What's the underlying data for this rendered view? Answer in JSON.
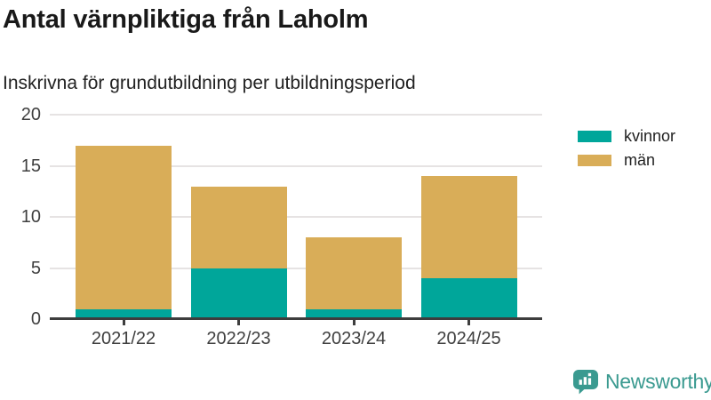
{
  "header": {
    "title": "Antal värnpliktiga från Laholm",
    "subtitle": "Inskrivna för grundutbildning per utbildningsperiod"
  },
  "chart_data": {
    "type": "bar",
    "stacked": true,
    "title": "Antal värnpliktiga från Laholm",
    "subtitle": "Inskrivna för grundutbildning per utbildningsperiod",
    "categories": [
      "2021/22",
      "2022/23",
      "2023/24",
      "2024/25"
    ],
    "series": [
      {
        "name": "kvinnor",
        "color": "#00a69a",
        "values": [
          1,
          5,
          1,
          4
        ]
      },
      {
        "name": "män",
        "color": "#d9ad58",
        "values": [
          16,
          8,
          7,
          10
        ]
      }
    ],
    "totals": [
      17,
      13,
      8,
      14
    ],
    "ylim": [
      0,
      20
    ],
    "yticks": [
      0,
      5,
      10,
      15,
      20
    ],
    "grid": true,
    "legend_position": "right",
    "colors": {
      "gridline": "#e6e3e3",
      "axis": "#3d3d3d",
      "tick_label": "#3f3f3f"
    }
  },
  "branding": {
    "logo_text": "Newsworthy",
    "logo_color": "#3a9a90",
    "logo_icon": "bar-chart-speech-bubble"
  }
}
